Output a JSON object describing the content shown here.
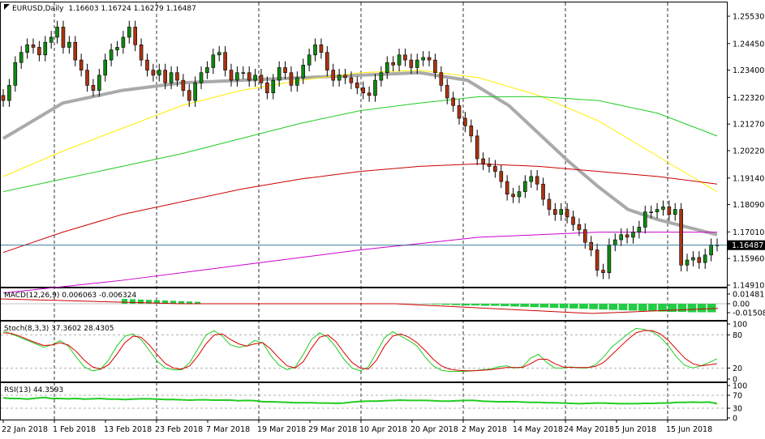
{
  "header": {
    "symbol": "EURUSD,Daily",
    "ohlc": "1.16603 1.16724 1.16279 1.16487"
  },
  "panels": {
    "macd": {
      "label": "MACD(12,26,9) 0.006063 -0.006324",
      "ticks": [
        "0.01481",
        "0.00",
        "-0.01508"
      ]
    },
    "stoch": {
      "label": "Stoch(8,3,3) 37.3602 28.4305",
      "ticks": [
        "100",
        "80",
        "20",
        "0"
      ]
    },
    "rsi": {
      "label": "RSI(13) 44.3593",
      "ticks": [
        "100",
        "70",
        "30",
        "0"
      ]
    }
  },
  "chart_data": {
    "type": "candlestick",
    "symbol": "EURUSD",
    "timeframe": "Daily",
    "last_price": "1.16487",
    "y_ticks": [
      "1.25530",
      "1.24450",
      "1.23400",
      "1.22320",
      "1.21270",
      "1.20220",
      "1.19140",
      "1.18090",
      "1.17010",
      "1.15960",
      "1.14910"
    ],
    "y_range": [
      1.1491,
      1.2553
    ],
    "x_ticks": [
      "22 Jan 2018",
      "1 Feb 2018",
      "13 Feb 2018",
      "23 Feb 2018",
      "7 Mar 2018",
      "19 Mar 2018",
      "29 Mar 2018",
      "10 Apr 2018",
      "20 Apr 2018",
      "2 May 2018",
      "14 May 2018",
      "24 May 2018",
      "5 Jun 2018",
      "15 Jun 2018"
    ],
    "closes": [
      1.222,
      1.228,
      1.237,
      1.241,
      1.244,
      1.243,
      1.24,
      1.245,
      1.247,
      1.251,
      1.243,
      1.245,
      1.238,
      1.234,
      1.228,
      1.226,
      1.232,
      1.238,
      1.242,
      1.243,
      1.247,
      1.251,
      1.244,
      1.238,
      1.234,
      1.232,
      1.234,
      1.229,
      1.233,
      1.23,
      1.226,
      1.222,
      1.229,
      1.233,
      1.235,
      1.24,
      1.241,
      1.234,
      1.23,
      1.233,
      1.233,
      1.23,
      1.232,
      1.229,
      1.225,
      1.23,
      1.235,
      1.233,
      1.228,
      1.231,
      1.236,
      1.24,
      1.244,
      1.241,
      1.234,
      1.23,
      1.232,
      1.231,
      1.229,
      1.227,
      1.225,
      1.224,
      1.23,
      1.233,
      1.237,
      1.236,
      1.24,
      1.238,
      1.235,
      1.238,
      1.239,
      1.238,
      1.233,
      1.228,
      1.223,
      1.22,
      1.215,
      1.212,
      1.208,
      1.199,
      1.197,
      1.196,
      1.194,
      1.19,
      1.185,
      1.184,
      1.186,
      1.19,
      1.192,
      1.189,
      1.183,
      1.179,
      1.177,
      1.179,
      1.176,
      1.173,
      1.171,
      1.166,
      1.163,
      1.155,
      1.154,
      1.165,
      1.167,
      1.169,
      1.168,
      1.17,
      1.172,
      1.178,
      1.178,
      1.179,
      1.18,
      1.177,
      1.179,
      1.157,
      1.159,
      1.16,
      1.158,
      1.161,
      1.165,
      1.1649
    ],
    "moving_averages": [
      {
        "color": "#aaaaaa",
        "points": [
          [
            0,
            1.207
          ],
          [
            10,
            1.221
          ],
          [
            20,
            1.226
          ],
          [
            30,
            1.229
          ],
          [
            50,
            1.231
          ],
          [
            70,
            1.233
          ],
          [
            78,
            1.23
          ],
          [
            85,
            1.22
          ],
          [
            90,
            1.209
          ],
          [
            95,
            1.198
          ],
          [
            100,
            1.188
          ],
          [
            105,
            1.179
          ],
          [
            110,
            1.175
          ],
          [
            115,
            1.172
          ],
          [
            120,
            1.169
          ]
        ]
      },
      {
        "color": "#ffee00",
        "points": [
          [
            0,
            1.192
          ],
          [
            10,
            1.202
          ],
          [
            20,
            1.211
          ],
          [
            30,
            1.22
          ],
          [
            40,
            1.226
          ],
          [
            50,
            1.23
          ],
          [
            60,
            1.233
          ],
          [
            70,
            1.234
          ],
          [
            80,
            1.231
          ],
          [
            90,
            1.224
          ],
          [
            100,
            1.214
          ],
          [
            110,
            1.2
          ],
          [
            120,
            1.186
          ]
        ]
      },
      {
        "color": "#22cc22",
        "points": [
          [
            0,
            1.186
          ],
          [
            10,
            1.191
          ],
          [
            20,
            1.196
          ],
          [
            30,
            1.201
          ],
          [
            40,
            1.207
          ],
          [
            50,
            1.213
          ],
          [
            60,
            1.218
          ],
          [
            70,
            1.221
          ],
          [
            80,
            1.2235
          ],
          [
            90,
            1.2235
          ],
          [
            100,
            1.222
          ],
          [
            110,
            1.217
          ],
          [
            120,
            1.208
          ]
        ]
      },
      {
        "color": "#cc0000",
        "points": [
          [
            0,
            1.162
          ],
          [
            10,
            1.17
          ],
          [
            20,
            1.177
          ],
          [
            30,
            1.182
          ],
          [
            40,
            1.187
          ],
          [
            50,
            1.191
          ],
          [
            60,
            1.194
          ],
          [
            70,
            1.196
          ],
          [
            80,
            1.197
          ],
          [
            90,
            1.196
          ],
          [
            100,
            1.194
          ],
          [
            110,
            1.192
          ],
          [
            120,
            1.189
          ]
        ]
      },
      {
        "color": "#cc00cc",
        "points": [
          [
            0,
            1.146
          ],
          [
            20,
            1.151
          ],
          [
            40,
            1.157
          ],
          [
            60,
            1.163
          ],
          [
            80,
            1.168
          ],
          [
            100,
            1.17
          ],
          [
            120,
            1.17
          ]
        ]
      }
    ],
    "macd_hist": [
      -0.1,
      -0.2,
      -0.3,
      -0.4,
      -0.5,
      -0.5,
      -0.6,
      -0.6,
      -0.7,
      -0.8,
      -0.9,
      -1.0,
      -1.1,
      -1.2,
      -1.3,
      -1.4,
      -1.5,
      -1.6,
      -1.7,
      -1.8,
      -1.9,
      -2.0,
      -2.1,
      -2.2,
      -2.3,
      -2.4,
      -2.4,
      -2.5,
      -2.5,
      -2.5
    ],
    "stoch_main": [
      88,
      82,
      76,
      70,
      64,
      58,
      62,
      70,
      60,
      40,
      22,
      15,
      18,
      35,
      60,
      78,
      82,
      72,
      52,
      32,
      20,
      17,
      17,
      30,
      55,
      80,
      88,
      78,
      62,
      58,
      60,
      70,
      66,
      42,
      25,
      17,
      22,
      45,
      72,
      84,
      76,
      58,
      36,
      20,
      15,
      22,
      48,
      75,
      86,
      78,
      70,
      60,
      40,
      24,
      16,
      14,
      14,
      14,
      15,
      17,
      18,
      22,
      24,
      20,
      22,
      38,
      45,
      30,
      20,
      20,
      22,
      20,
      20,
      26,
      40,
      58,
      70,
      82,
      92,
      90,
      86,
      76,
      60,
      40,
      25,
      20,
      24,
      30,
      37
    ],
    "stoch_signal": [
      84,
      83,
      78,
      72,
      66,
      61,
      62,
      66,
      62,
      50,
      34,
      22,
      18,
      26,
      45,
      66,
      78,
      76,
      62,
      44,
      28,
      20,
      18,
      24,
      42,
      64,
      80,
      82,
      72,
      64,
      60,
      64,
      66,
      54,
      38,
      24,
      20,
      32,
      56,
      76,
      80,
      68,
      48,
      30,
      20,
      18,
      34,
      60,
      78,
      82,
      76,
      66,
      52,
      36,
      24,
      18,
      16,
      15,
      15,
      16,
      17,
      19,
      21,
      21,
      21,
      28,
      36,
      36,
      28,
      22,
      21,
      21,
      21,
      23,
      30,
      44,
      58,
      72,
      84,
      88,
      88,
      82,
      70,
      54,
      38,
      28,
      24,
      26,
      28
    ],
    "rsi": [
      62,
      60,
      60,
      58,
      61,
      63,
      60,
      60,
      59,
      60,
      58,
      59,
      60,
      58,
      58,
      57,
      58,
      59,
      59,
      58,
      57,
      57,
      56,
      55,
      56,
      56,
      55,
      55,
      55,
      53,
      54,
      53,
      50,
      50,
      49,
      48,
      47,
      47,
      47,
      46,
      46,
      45,
      46,
      49,
      51,
      52,
      52,
      53,
      54,
      55,
      54,
      54,
      54,
      53,
      52,
      52,
      53,
      54,
      54,
      52,
      51,
      50,
      50,
      50,
      49,
      48,
      48,
      47,
      47,
      46,
      45,
      44,
      45,
      46,
      46,
      45,
      44,
      44,
      44,
      45,
      45,
      46,
      46,
      48,
      48,
      49,
      48,
      49,
      44
    ]
  }
}
